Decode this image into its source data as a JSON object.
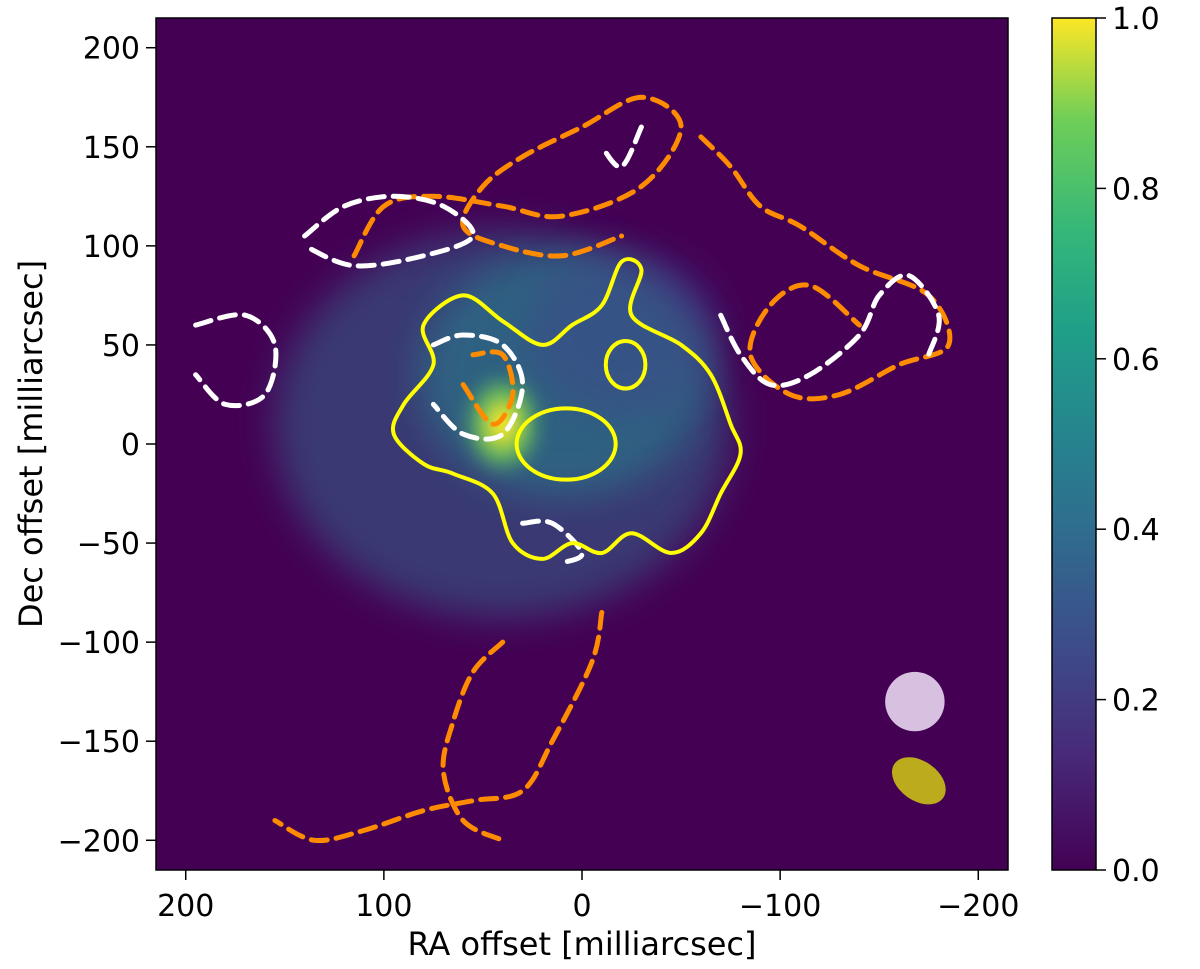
{
  "chart_data": {
    "type": "heatmap",
    "xlabel": "RA offset [milliarcsec]",
    "ylabel": "Dec offset [milliarcsec]",
    "xlim": [
      215,
      -215
    ],
    "ylim": [
      -215,
      215
    ],
    "x_ticks": [
      200,
      100,
      0,
      -100,
      -200
    ],
    "x_tick_labels": [
      "200",
      "100",
      "0",
      "−100",
      "−200"
    ],
    "y_ticks": [
      -200,
      -150,
      -100,
      -50,
      0,
      50,
      100,
      150,
      200
    ],
    "y_tick_labels": [
      "−200",
      "−150",
      "−100",
      "−50",
      "0",
      "50",
      "100",
      "150",
      "200"
    ],
    "colormap": "viridis",
    "colorbar": {
      "range": [
        0.0,
        1.0
      ],
      "ticks": [
        0.0,
        0.2,
        0.4,
        0.6,
        0.8,
        1.0
      ],
      "tick_labels": [
        "0.0",
        "0.2",
        "0.4",
        "0.6",
        "0.8",
        "1.0"
      ]
    },
    "background_color": "#440154",
    "contour_colors": {
      "solid": "#ffff00",
      "dashed_orange": "#ff8c00",
      "dashed_white": "#ffffff"
    },
    "emission_peaks": [
      {
        "x": 40,
        "y": 10,
        "amplitude": 1.0
      },
      {
        "x": 10,
        "y": 35,
        "amplitude": 0.55
      },
      {
        "x": -20,
        "y": 55,
        "amplitude": 0.3
      }
    ],
    "solid_contour_main": [
      [
        60,
        75
      ],
      [
        40,
        62
      ],
      [
        20,
        50
      ],
      [
        5,
        60
      ],
      [
        -10,
        70
      ],
      [
        -20,
        92
      ],
      [
        -30,
        88
      ],
      [
        -25,
        65
      ],
      [
        -50,
        50
      ],
      [
        -65,
        35
      ],
      [
        -75,
        10
      ],
      [
        -80,
        -5
      ],
      [
        -70,
        -25
      ],
      [
        -60,
        -45
      ],
      [
        -45,
        -55
      ],
      [
        -25,
        -45
      ],
      [
        -10,
        -55
      ],
      [
        5,
        -50
      ],
      [
        20,
        -58
      ],
      [
        35,
        -50
      ],
      [
        45,
        -25
      ],
      [
        65,
        -15
      ],
      [
        80,
        -10
      ],
      [
        95,
        5
      ],
      [
        90,
        20
      ],
      [
        75,
        40
      ],
      [
        80,
        60
      ]
    ],
    "solid_contour_holes": [
      {
        "cx": 8,
        "cy": 0,
        "rx": 25,
        "ry": 18
      },
      {
        "cx": -22,
        "cy": 40,
        "rx": 10,
        "ry": 12
      }
    ],
    "dashed_orange_arcs": [
      [
        [
          115,
          95
        ],
        [
          100,
          120
        ],
        [
          75,
          125
        ],
        [
          40,
          120
        ],
        [
          10,
          115
        ],
        [
          -30,
          130
        ],
        [
          -50,
          160
        ],
        [
          -30,
          175
        ],
        [
          0,
          160
        ],
        [
          30,
          145
        ],
        [
          50,
          130
        ],
        [
          60,
          110
        ],
        [
          40,
          100
        ],
        [
          10,
          95
        ],
        [
          -20,
          105
        ]
      ],
      [
        [
          -60,
          155
        ],
        [
          -75,
          140
        ],
        [
          -90,
          120
        ],
        [
          -110,
          110
        ],
        [
          -140,
          90
        ],
        [
          -175,
          75
        ],
        [
          -185,
          50
        ],
        [
          -160,
          40
        ],
        [
          -130,
          25
        ],
        [
          -105,
          25
        ],
        [
          -85,
          45
        ],
        [
          -95,
          70
        ],
        [
          -115,
          80
        ],
        [
          -140,
          60
        ]
      ],
      [
        [
          -10,
          -85
        ],
        [
          -5,
          -110
        ],
        [
          15,
          -150
        ],
        [
          30,
          -175
        ],
        [
          55,
          -180
        ],
        [
          80,
          -185
        ],
        [
          110,
          -195
        ],
        [
          135,
          -200
        ],
        [
          155,
          -190
        ]
      ],
      [
        [
          40,
          -100
        ],
        [
          55,
          -115
        ],
        [
          65,
          -140
        ],
        [
          70,
          -165
        ],
        [
          60,
          -190
        ],
        [
          40,
          -200
        ]
      ],
      [
        [
          60,
          30
        ],
        [
          45,
          10
        ],
        [
          35,
          25
        ],
        [
          40,
          45
        ],
        [
          55,
          45
        ]
      ]
    ],
    "dashed_white_arcs": [
      [
        [
          140,
          105
        ],
        [
          120,
          120
        ],
        [
          95,
          125
        ],
        [
          70,
          120
        ],
        [
          55,
          105
        ],
        [
          80,
          95
        ],
        [
          115,
          90
        ],
        [
          140,
          100
        ]
      ],
      [
        [
          195,
          60
        ],
        [
          170,
          65
        ],
        [
          155,
          50
        ],
        [
          160,
          25
        ],
        [
          180,
          20
        ],
        [
          195,
          35
        ]
      ],
      [
        [
          -70,
          65
        ],
        [
          -80,
          45
        ],
        [
          -95,
          30
        ],
        [
          -115,
          35
        ],
        [
          -140,
          55
        ],
        [
          -150,
          75
        ],
        [
          -165,
          85
        ],
        [
          -180,
          65
        ],
        [
          -175,
          45
        ]
      ],
      [
        [
          -30,
          160
        ],
        [
          -20,
          140
        ],
        [
          -10,
          150
        ]
      ],
      [
        [
          75,
          50
        ],
        [
          60,
          55
        ],
        [
          40,
          50
        ],
        [
          30,
          30
        ],
        [
          40,
          5
        ],
        [
          60,
          5
        ],
        [
          75,
          20
        ]
      ],
      [
        [
          30,
          -40
        ],
        [
          15,
          -40
        ],
        [
          0,
          -55
        ],
        [
          10,
          -60
        ]
      ]
    ],
    "beams": [
      {
        "color": "#d8c0e0",
        "x": -168,
        "y": -130,
        "rx": 15,
        "ry": 15,
        "angle": 0
      },
      {
        "color": "#bcab1c",
        "x": -170,
        "y": -170,
        "rx": 15,
        "ry": 10,
        "angle": 35
      }
    ]
  }
}
